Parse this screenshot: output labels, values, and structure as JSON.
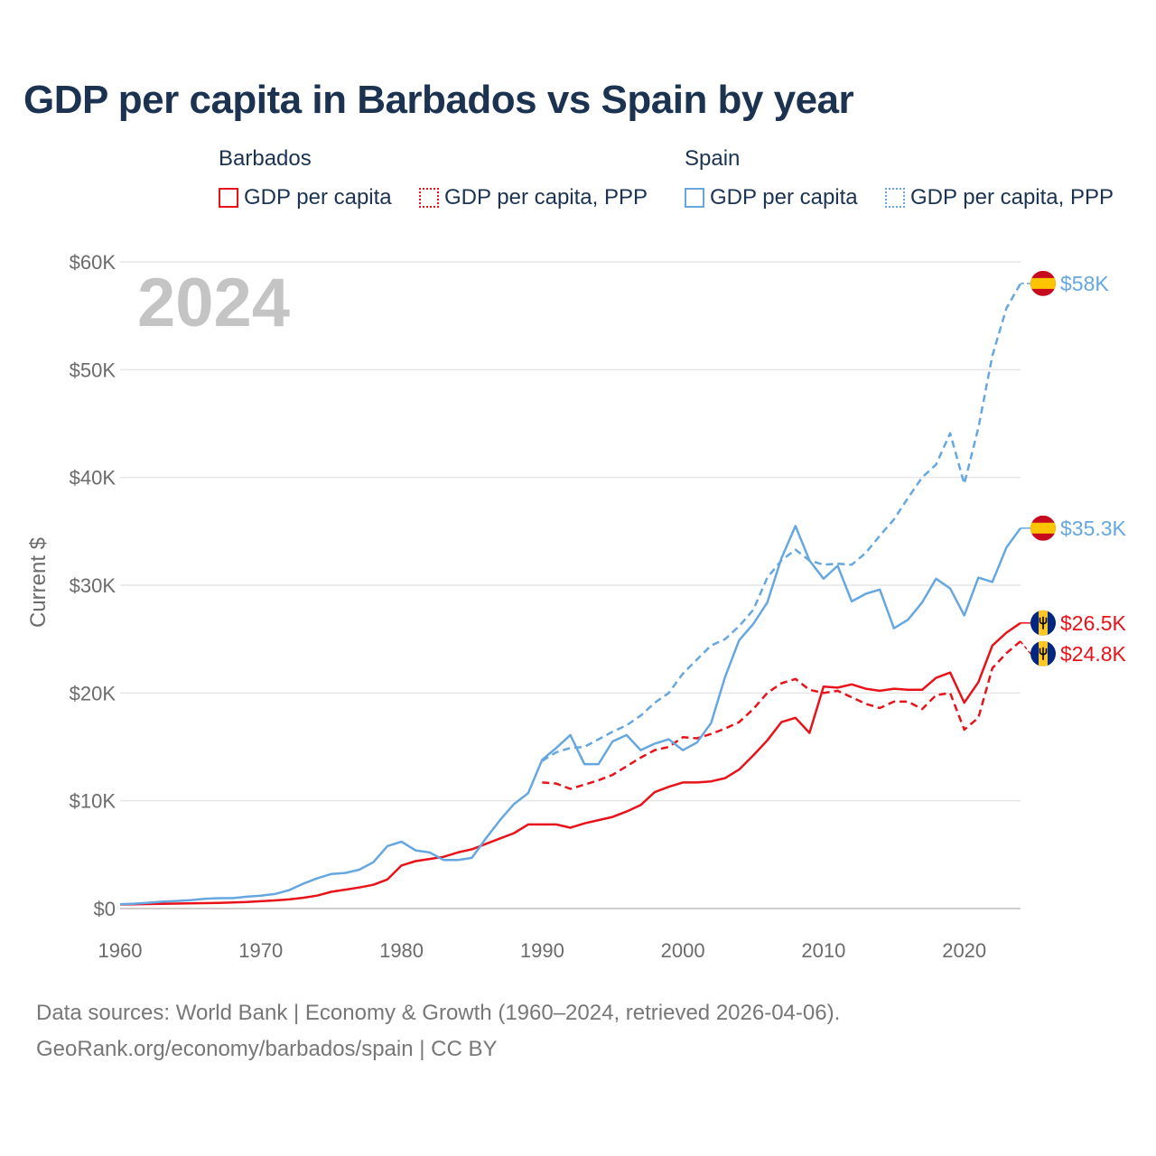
{
  "title": "GDP per capita in Barbados vs Spain by year",
  "year_display": "2024",
  "legend": {
    "groups": [
      {
        "name": "Barbados",
        "items": [
          "GDP per capita",
          "GDP per capita, PPP"
        ]
      },
      {
        "name": "Spain",
        "items": [
          "GDP per capita",
          "GDP per capita, PPP"
        ]
      }
    ]
  },
  "footer": {
    "line1": "Data sources: World Bank | Economy & Growth (1960–2024, retrieved 2026-04-06).",
    "line2": "GeoRank.org/economy/barbados/spain | CC BY"
  },
  "colors": {
    "barbados": "#e8121a",
    "spain": "#66a7e0"
  },
  "chart_data": {
    "type": "line",
    "title": "GDP per capita in Barbados vs Spain by year",
    "xlabel": "",
    "ylabel": "Current $",
    "xlim": [
      1960,
      2024
    ],
    "ylim": [
      0,
      60000
    ],
    "x_ticks": [
      1960,
      1970,
      1980,
      1990,
      2000,
      2010,
      2020
    ],
    "x_tick_labels": [
      "1960",
      "1970",
      "1980",
      "1990",
      "2000",
      "2010",
      "2020"
    ],
    "y_ticks": [
      0,
      10000,
      20000,
      30000,
      40000,
      50000,
      60000
    ],
    "y_tick_labels": [
      "$0",
      "$10K",
      "$20K",
      "$30K",
      "$40K",
      "$50K",
      "$60K"
    ],
    "grid": true,
    "series": [
      {
        "name": "Barbados GDP per capita",
        "country": "Barbados",
        "style": "solid",
        "color": "#e8121a",
        "end_label": "$26.5K",
        "start_year": 1960,
        "values": [
          380,
          400,
          420,
          440,
          460,
          480,
          500,
          530,
          560,
          600,
          680,
          750,
          850,
          1000,
          1200,
          1550,
          1750,
          1950,
          2200,
          2700,
          4000,
          4400,
          4600,
          4800,
          5200,
          5500,
          6000,
          6500,
          7000,
          7800,
          7800,
          7800,
          7500,
          7900,
          8200,
          8500,
          9000,
          9600,
          10800,
          11300,
          11700,
          11700,
          11800,
          12100,
          12900,
          14200,
          15600,
          17300,
          17700,
          16300,
          20600,
          20500,
          20800,
          20400,
          20200,
          20400,
          20300,
          20300,
          21400,
          21900,
          19100,
          21000,
          24400,
          25600,
          26500
        ]
      },
      {
        "name": "Barbados GDP per capita, PPP",
        "country": "Barbados",
        "style": "dashed",
        "color": "#e8121a",
        "end_label": "$24.8K",
        "start_year": 1990,
        "values": [
          11700,
          11600,
          11100,
          11500,
          11900,
          12400,
          13200,
          14000,
          14700,
          15000,
          15900,
          15800,
          16200,
          16700,
          17300,
          18500,
          20000,
          20900,
          21300,
          20300,
          20000,
          20200,
          19600,
          19000,
          18600,
          19200,
          19200,
          18500,
          19800,
          20000,
          16600,
          17700,
          22300,
          23700,
          24800
        ]
      },
      {
        "name": "Spain GDP per capita",
        "country": "Spain",
        "style": "solid",
        "color": "#66a7e0",
        "end_label": "$35.3K",
        "start_year": 1960,
        "values": [
          400,
          450,
          540,
          640,
          700,
          780,
          900,
          960,
          960,
          1100,
          1200,
          1350,
          1700,
          2300,
          2800,
          3200,
          3300,
          3600,
          4300,
          5800,
          6200,
          5400,
          5200,
          4500,
          4500,
          4700,
          6500,
          8200,
          9700,
          10700,
          13800,
          14900,
          16100,
          13400,
          13400,
          15500,
          16100,
          14700,
          15300,
          15700,
          14700,
          15400,
          17200,
          21500,
          24900,
          26400,
          28400,
          32500,
          35500,
          32300,
          30600,
          31800,
          28500,
          29200,
          29600,
          26000,
          26800,
          28400,
          30600,
          29700,
          27200,
          30700,
          30300,
          33500,
          35300
        ]
      },
      {
        "name": "Spain GDP per capita, PPP",
        "country": "Spain",
        "style": "dashed",
        "color": "#66a7e0",
        "end_label": "$58K",
        "start_year": 1990,
        "values": [
          13700,
          14500,
          14900,
          15000,
          15700,
          16400,
          17000,
          17900,
          19100,
          20000,
          21800,
          23100,
          24400,
          25000,
          26200,
          27700,
          30700,
          32300,
          33300,
          32300,
          31900,
          32000,
          31900,
          33000,
          34600,
          36100,
          38100,
          40000,
          41200,
          44100,
          39400,
          44600,
          51300,
          55700,
          58000
        ]
      }
    ]
  }
}
